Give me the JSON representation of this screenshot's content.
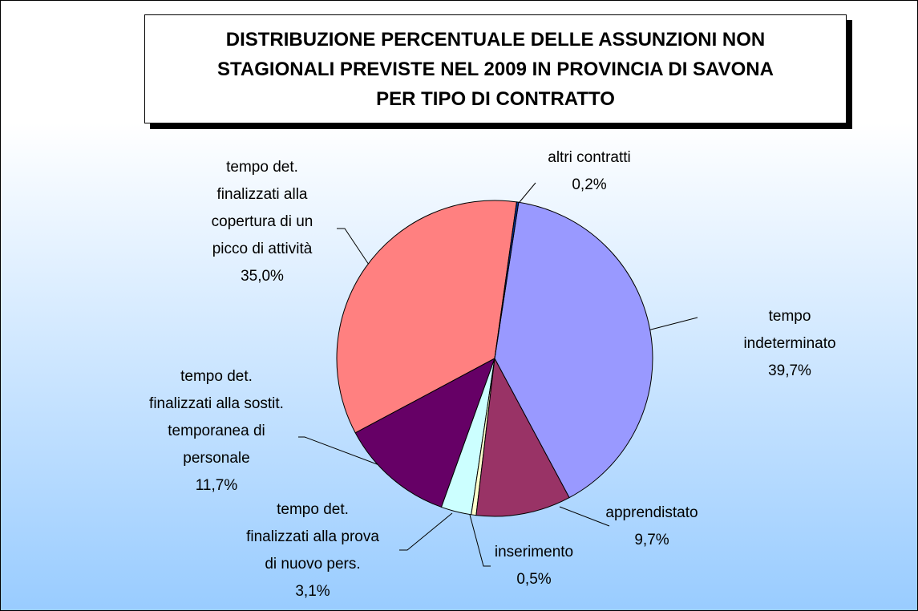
{
  "chart_data": {
    "type": "pie",
    "title": "DISTRIBUZIONE PERCENTUALE DELLE ASSUNZIONI NON\nSTAGIONALI PREVISTE NEL 2009 IN PROVINCIA DI SAVONA\nPER TIPO DI CONTRATTO",
    "categories": [
      "altri contratti",
      "tempo indeterminato",
      "apprendistato",
      "inserimento",
      "tempo det.\nfinalizzati alla prova\ndi nuovo pers.",
      "tempo det.\nfinalizzati alla sostit.\ntemporanea di\npersonale",
      "tempo det.\nfinalizzati alla\ncopertura di un\npicco di attività"
    ],
    "values": [
      0.2,
      39.7,
      9.7,
      0.5,
      3.1,
      11.7,
      35.0
    ],
    "value_labels": [
      "0,2%",
      "39,7%",
      "9,7%",
      "0,5%",
      "3,1%",
      "11,7%",
      "35,0%"
    ],
    "colors": [
      "#003399",
      "#9999ff",
      "#993366",
      "#ffffcc",
      "#ccffff",
      "#660066",
      "#ff8080"
    ]
  }
}
